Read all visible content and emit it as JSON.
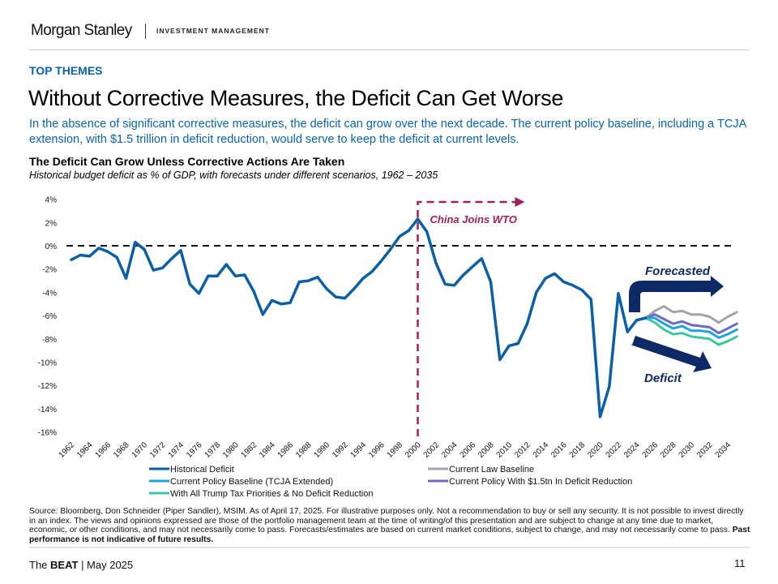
{
  "header": {
    "brand": "Morgan Stanley",
    "brand_sub": "INVESTMENT MANAGEMENT"
  },
  "section_label": "TOP THEMES",
  "page_title": "Without Corrective Measures, the Deficit Can Get Worse",
  "intro": "In the absence of significant corrective measures, the deficit can grow over the next decade. The current policy baseline, including a TCJA extension, with $1.5 trillion in deficit reduction, would serve to keep the deficit at current levels.",
  "chart_heading": "The Deficit Can Grow Unless Corrective Actions Are Taken",
  "chart_subheading": "Historical budget deficit as % of GDP, with forecasts under different scenarios, 1962 – 2035",
  "colors": {
    "accent_blue": "#0b62a8",
    "annotation_maroon": "#9c2259",
    "arrow_navy": "#0d2a66"
  },
  "chart_data": {
    "type": "line",
    "title": "The Deficit Can Grow Unless Corrective Actions Are Taken",
    "subtitle": "Historical budget deficit as % of GDP, with forecasts under different scenarios, 1962 – 2035",
    "xlabel": "",
    "ylabel": "",
    "xlim": [
      1962,
      2035
    ],
    "ylim": [
      -16,
      4
    ],
    "y_ticks": [
      4,
      2,
      0,
      -2,
      -4,
      -6,
      -8,
      -10,
      -12,
      -14,
      -16
    ],
    "y_tick_labels": [
      "4%",
      "2%",
      "0%",
      "-2%",
      "-4%",
      "-6%",
      "-8%",
      "-10%",
      "-12%",
      "-14%",
      "-16%"
    ],
    "x_tick_labels": [
      "1962",
      "1964",
      "1966",
      "1968",
      "1970",
      "1972",
      "1974",
      "1976",
      "1978",
      "1980",
      "1982",
      "1984",
      "1986",
      "1988",
      "1990",
      "1992",
      "1994",
      "1996",
      "1998",
      "2000",
      "2002",
      "2004",
      "2006",
      "2008",
      "2010",
      "2012",
      "2014",
      "2016",
      "2018",
      "2020",
      "2022",
      "2024",
      "2026",
      "2028",
      "2030",
      "2032",
      "2034"
    ],
    "grid": false,
    "reference_line": {
      "y": 0,
      "style": "dashed"
    },
    "legend_position": "bottom",
    "series": [
      {
        "name": "Historical Deficit",
        "color": "#0b5fa5",
        "x_start": 1962,
        "values": [
          -1.2,
          -0.8,
          -0.9,
          -0.2,
          -0.5,
          -1.0,
          -2.8,
          0.3,
          -0.3,
          -2.1,
          -1.9,
          -1.1,
          -0.4,
          -3.3,
          -4.1,
          -2.6,
          -2.6,
          -1.6,
          -2.6,
          -2.5,
          -3.9,
          -5.9,
          -4.7,
          -5.0,
          -4.9,
          -3.1,
          -3.0,
          -2.7,
          -3.7,
          -4.4,
          -4.5,
          -3.7,
          -2.8,
          -2.2,
          -1.3,
          -0.3,
          0.8,
          1.3,
          2.3,
          1.2,
          -1.5,
          -3.3,
          -3.4,
          -2.5,
          -1.8,
          -1.1,
          -3.1,
          -9.8,
          -8.6,
          -8.4,
          -6.7,
          -4.0,
          -2.8,
          -2.4,
          -3.1,
          -3.4,
          -3.8,
          -4.6,
          -14.7,
          -12.1,
          -4.1,
          -7.4,
          -6.4,
          -6.2
        ]
      },
      {
        "name": "Current Law Baseline",
        "color": "#a3a3aa",
        "x_start": 2025,
        "values": [
          -6.2,
          -5.6,
          -5.2,
          -5.7,
          -5.6,
          -5.9,
          -5.9,
          -6.1,
          -6.6,
          -6.1,
          -5.7
        ]
      },
      {
        "name": "Current Policy With $1.5tn In Deficit Reduction",
        "color": "#6b6bc2",
        "x_start": 2025,
        "values": [
          -6.2,
          -5.9,
          -6.3,
          -6.7,
          -6.5,
          -6.8,
          -6.9,
          -7.0,
          -7.5,
          -7.1,
          -6.7
        ]
      },
      {
        "name": "Current Policy Baseline (TCJA Extended)",
        "color": "#1ea3e2",
        "x_start": 2025,
        "values": [
          -6.2,
          -6.2,
          -6.7,
          -7.1,
          -6.9,
          -7.3,
          -7.3,
          -7.4,
          -7.9,
          -7.6,
          -7.2
        ]
      },
      {
        "name": "With All Trump Tax Priorities & No Deficit Reduction",
        "color": "#3ec6a2",
        "x_start": 2025,
        "values": [
          -6.2,
          -6.6,
          -7.2,
          -7.6,
          -7.5,
          -7.8,
          -7.9,
          -8.0,
          -8.5,
          -8.2,
          -7.8
        ]
      }
    ],
    "legend": [
      {
        "name": "Historical Deficit",
        "color": "#0b5fa5"
      },
      {
        "name": "Current Law Baseline",
        "color": "#a3a3aa"
      },
      {
        "name": "Current Policy Baseline (TCJA Extended)",
        "color": "#1ea3e2"
      },
      {
        "name": "Current Policy With $1.5tn In Deficit Reduction",
        "color": "#6b6bc2"
      },
      {
        "name": "With All Trump Tax Priorities & No Deficit Reduction",
        "color": "#3ec6a2"
      }
    ],
    "annotations": [
      {
        "text": "China Joins WTO",
        "x": 2000,
        "color": "#9c2259"
      },
      {
        "text": "Forecasted",
        "x": 2025,
        "color": "#0d2a66"
      },
      {
        "text": "Deficit",
        "x": 2025,
        "color": "#0d2a66"
      }
    ]
  },
  "source_text": "Source: Bloomberg, Don Schneider (Piper Sandler), MSIM. As of April 17, 2025. For illustrative purposes only. Not a recommendation to buy or sell any security. It is not possible to invest directly in an index. The views and opinions expressed are those of the portfolio management team at the time of writing/of this presentation and are subject to change at any time due to market, economic, or other conditions, and may not necessarily come to pass.  Forecasts/estimates are based on current market conditions, subject to change, and may not necessarily come to pass.",
  "source_bold": "Past performance is not indicative of future results.",
  "footer": {
    "prefix": "The ",
    "bold": "BEAT",
    "suffix": " | May 2025",
    "page_number": "11"
  }
}
